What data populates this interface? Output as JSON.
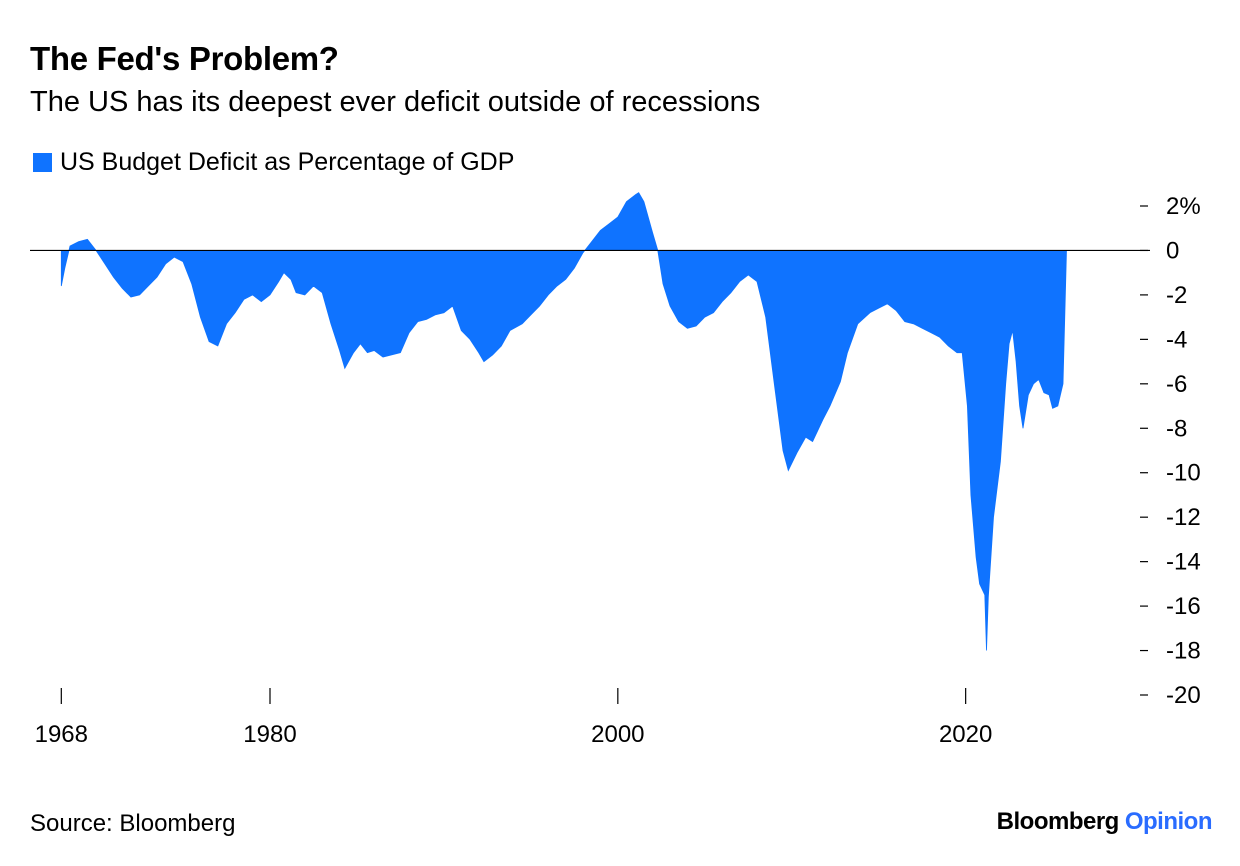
{
  "colors": {
    "series": "#0f73ff",
    "text": "#000000",
    "background": "#ffffff",
    "opinion": "#2a6cff"
  },
  "source_text": "Source: Bloomberg",
  "brand": {
    "name": "Bloomberg",
    "section": "Opinion"
  },
  "chart_data": {
    "type": "area",
    "title": "The Fed's Problem?",
    "subtitle": "The US has its deepest ever deficit outside of recessions",
    "series": [
      {
        "name": "US Budget Deficit as Percentage of GDP",
        "points": [
          [
            1968.0,
            -1.6
          ],
          [
            1968.2,
            -0.8
          ],
          [
            1968.5,
            0.2
          ],
          [
            1969.0,
            0.4
          ],
          [
            1969.5,
            0.5
          ],
          [
            1970.0,
            0.0
          ],
          [
            1970.5,
            -0.6
          ],
          [
            1971.0,
            -1.2
          ],
          [
            1971.5,
            -1.7
          ],
          [
            1972.0,
            -2.1
          ],
          [
            1972.5,
            -2.0
          ],
          [
            1973.0,
            -1.6
          ],
          [
            1973.5,
            -1.2
          ],
          [
            1974.0,
            -0.6
          ],
          [
            1974.5,
            -0.3
          ],
          [
            1975.0,
            -0.5
          ],
          [
            1975.5,
            -1.5
          ],
          [
            1976.0,
            -3.0
          ],
          [
            1976.5,
            -4.1
          ],
          [
            1977.0,
            -4.3
          ],
          [
            1977.5,
            -3.3
          ],
          [
            1978.0,
            -2.8
          ],
          [
            1978.5,
            -2.2
          ],
          [
            1979.0,
            -2.0
          ],
          [
            1979.5,
            -2.3
          ],
          [
            1980.0,
            -2.0
          ],
          [
            1980.5,
            -1.4
          ],
          [
            1980.8,
            -1.0
          ],
          [
            1981.2,
            -1.3
          ],
          [
            1981.5,
            -1.9
          ],
          [
            1982.0,
            -2.0
          ],
          [
            1982.5,
            -1.6
          ],
          [
            1983.0,
            -1.9
          ],
          [
            1983.5,
            -3.3
          ],
          [
            1984.0,
            -4.5
          ],
          [
            1984.3,
            -5.3
          ],
          [
            1984.8,
            -4.6
          ],
          [
            1985.2,
            -4.2
          ],
          [
            1985.6,
            -4.6
          ],
          [
            1986.0,
            -4.5
          ],
          [
            1986.5,
            -4.8
          ],
          [
            1987.0,
            -4.7
          ],
          [
            1987.5,
            -4.6
          ],
          [
            1988.0,
            -3.7
          ],
          [
            1988.5,
            -3.2
          ],
          [
            1989.0,
            -3.1
          ],
          [
            1989.5,
            -2.9
          ],
          [
            1990.0,
            -2.8
          ],
          [
            1990.5,
            -2.5
          ],
          [
            1991.0,
            -3.6
          ],
          [
            1991.5,
            -4.0
          ],
          [
            1992.0,
            -4.6
          ],
          [
            1992.3,
            -5.0
          ],
          [
            1992.8,
            -4.7
          ],
          [
            1993.3,
            -4.3
          ],
          [
            1993.8,
            -3.6
          ],
          [
            1994.5,
            -3.3
          ],
          [
            1995.0,
            -2.9
          ],
          [
            1995.5,
            -2.5
          ],
          [
            1996.0,
            -2.0
          ],
          [
            1996.5,
            -1.6
          ],
          [
            1997.0,
            -1.3
          ],
          [
            1997.5,
            -0.8
          ],
          [
            1998.0,
            -0.1
          ],
          [
            1998.5,
            0.4
          ],
          [
            1999.0,
            0.9
          ],
          [
            1999.5,
            1.2
          ],
          [
            2000.0,
            1.5
          ],
          [
            2000.5,
            2.2
          ],
          [
            2001.0,
            2.5
          ],
          [
            2001.2,
            2.6
          ],
          [
            2001.5,
            2.2
          ],
          [
            2002.0,
            0.8
          ],
          [
            2002.3,
            0.0
          ],
          [
            2002.6,
            -1.5
          ],
          [
            2003.0,
            -2.5
          ],
          [
            2003.5,
            -3.2
          ],
          [
            2004.0,
            -3.5
          ],
          [
            2004.5,
            -3.4
          ],
          [
            2005.0,
            -3.0
          ],
          [
            2005.5,
            -2.8
          ],
          [
            2006.0,
            -2.3
          ],
          [
            2006.5,
            -1.9
          ],
          [
            2007.0,
            -1.4
          ],
          [
            2007.5,
            -1.1
          ],
          [
            2008.0,
            -1.4
          ],
          [
            2008.5,
            -3.0
          ],
          [
            2009.0,
            -6.0
          ],
          [
            2009.5,
            -9.0
          ],
          [
            2009.8,
            -9.9
          ],
          [
            2010.3,
            -9.1
          ],
          [
            2010.8,
            -8.4
          ],
          [
            2011.2,
            -8.6
          ],
          [
            2011.8,
            -7.6
          ],
          [
            2012.2,
            -7.0
          ],
          [
            2012.8,
            -5.9
          ],
          [
            2013.2,
            -4.6
          ],
          [
            2013.8,
            -3.3
          ],
          [
            2014.5,
            -2.8
          ],
          [
            2015.0,
            -2.6
          ],
          [
            2015.5,
            -2.4
          ],
          [
            2016.0,
            -2.7
          ],
          [
            2016.5,
            -3.2
          ],
          [
            2017.0,
            -3.3
          ],
          [
            2017.5,
            -3.5
          ],
          [
            2018.0,
            -3.7
          ],
          [
            2018.5,
            -3.9
          ],
          [
            2019.0,
            -4.3
          ],
          [
            2019.5,
            -4.6
          ],
          [
            2019.8,
            -4.6
          ],
          [
            2020.1,
            -7.0
          ],
          [
            2020.3,
            -11.0
          ],
          [
            2020.6,
            -13.8
          ],
          [
            2020.8,
            -15.0
          ],
          [
            2021.1,
            -15.5
          ],
          [
            2021.2,
            -18.0
          ],
          [
            2021.3,
            -15.6
          ],
          [
            2021.6,
            -12.0
          ],
          [
            2022.0,
            -9.5
          ],
          [
            2022.3,
            -6.0
          ],
          [
            2022.5,
            -4.2
          ],
          [
            2022.7,
            -3.6
          ],
          [
            2022.9,
            -5.0
          ],
          [
            2023.1,
            -7.0
          ],
          [
            2023.3,
            -8.0
          ],
          [
            2023.6,
            -6.5
          ],
          [
            2023.9,
            -6.0
          ],
          [
            2024.2,
            -5.8
          ],
          [
            2024.5,
            -6.4
          ],
          [
            2024.8,
            -6.5
          ],
          [
            2025.0,
            -7.1
          ],
          [
            2025.3,
            -7.0
          ],
          [
            2025.6,
            -6.0
          ],
          [
            2025.8,
            0.0
          ]
        ]
      }
    ],
    "x_ticks": [
      {
        "value": 1968,
        "label": "1968"
      },
      {
        "value": 1980,
        "label": "1980"
      },
      {
        "value": 2000,
        "label": "2000"
      },
      {
        "value": 2020,
        "label": "2020"
      }
    ],
    "y_ticks": [
      {
        "value": 2,
        "label": "2%"
      },
      {
        "value": 0,
        "label": "0"
      },
      {
        "value": -2,
        "label": "-2"
      },
      {
        "value": -4,
        "label": "-4"
      },
      {
        "value": -6,
        "label": "-6"
      },
      {
        "value": -8,
        "label": "-8"
      },
      {
        "value": -10,
        "label": "-10"
      },
      {
        "value": -12,
        "label": "-12"
      },
      {
        "value": -14,
        "label": "-14"
      },
      {
        "value": -16,
        "label": "-16"
      },
      {
        "value": -18,
        "label": "-18"
      },
      {
        "value": -20,
        "label": "-20"
      }
    ],
    "xlim": [
      1966.2,
      2030.6
    ],
    "ylim": [
      -20,
      2
    ],
    "xlabel": "",
    "ylabel": "",
    "grid": false,
    "legend_position": "top-left"
  }
}
